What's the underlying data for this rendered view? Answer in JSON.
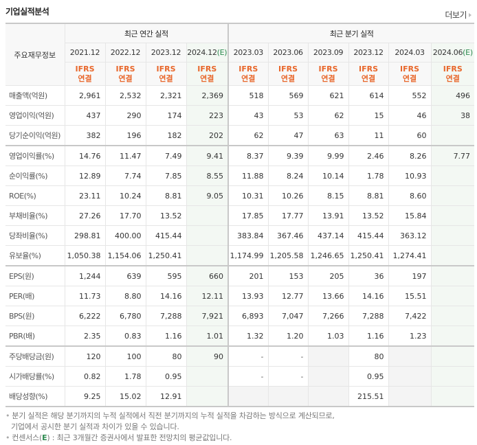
{
  "section": {
    "title": "기업실적분석",
    "more_label": "더보기"
  },
  "table": {
    "label_header": "주요재무정보",
    "group_annual": "최근 연간 실적",
    "group_quarter": "최근 분기 실적",
    "periods": [
      {
        "label": "2021.12",
        "est": ""
      },
      {
        "label": "2022.12",
        "est": ""
      },
      {
        "label": "2023.12",
        "est": ""
      },
      {
        "label": "2024.12",
        "est": "(E)"
      },
      {
        "label": "2023.03",
        "est": ""
      },
      {
        "label": "2023.06",
        "est": ""
      },
      {
        "label": "2023.09",
        "est": ""
      },
      {
        "label": "2023.12",
        "est": ""
      },
      {
        "label": "2024.03",
        "est": ""
      },
      {
        "label": "2024.06",
        "est": "(E)"
      }
    ],
    "ifrs_top": "IFRS",
    "ifrs_bottom": "연결",
    "rows": [
      {
        "label": "매출액(억원)",
        "values": [
          "2,961",
          "2,532",
          "2,321",
          "2,369",
          "518",
          "569",
          "621",
          "614",
          "552",
          "496"
        ]
      },
      {
        "label": "영업이익(억원)",
        "values": [
          "437",
          "290",
          "174",
          "223",
          "43",
          "53",
          "62",
          "15",
          "46",
          "38"
        ]
      },
      {
        "label": "당기순이익(억원)",
        "values": [
          "382",
          "196",
          "182",
          "202",
          "62",
          "47",
          "63",
          "11",
          "60",
          ""
        ]
      },
      {
        "label": "영업이익률(%)",
        "values": [
          "14.76",
          "11.47",
          "7.49",
          "9.41",
          "8.37",
          "9.39",
          "9.99",
          "2.46",
          "8.26",
          "7.77"
        ]
      },
      {
        "label": "순이익률(%)",
        "values": [
          "12.89",
          "7.74",
          "7.85",
          "8.55",
          "11.88",
          "8.24",
          "10.14",
          "1.78",
          "10.93",
          ""
        ]
      },
      {
        "label": "ROE(%)",
        "values": [
          "23.11",
          "10.24",
          "8.81",
          "9.05",
          "10.31",
          "10.26",
          "8.15",
          "8.81",
          "8.60",
          ""
        ]
      },
      {
        "label": "부채비율(%)",
        "values": [
          "27.26",
          "17.70",
          "13.52",
          "",
          "17.85",
          "17.77",
          "13.91",
          "13.52",
          "15.84",
          ""
        ]
      },
      {
        "label": "당좌비율(%)",
        "values": [
          "298.81",
          "400.00",
          "415.44",
          "",
          "383.84",
          "367.46",
          "437.14",
          "415.44",
          "363.12",
          ""
        ]
      },
      {
        "label": "유보율(%)",
        "values": [
          "1,050.38",
          "1,154.06",
          "1,250.41",
          "",
          "1,174.99",
          "1,205.58",
          "1,246.65",
          "1,250.41",
          "1,274.41",
          ""
        ]
      },
      {
        "label": "EPS(원)",
        "values": [
          "1,244",
          "639",
          "595",
          "660",
          "201",
          "153",
          "205",
          "36",
          "197",
          ""
        ]
      },
      {
        "label": "PER(배)",
        "values": [
          "11.73",
          "8.80",
          "14.16",
          "12.11",
          "13.93",
          "12.77",
          "13.66",
          "14.16",
          "15.51",
          ""
        ]
      },
      {
        "label": "BPS(원)",
        "values": [
          "6,222",
          "6,780",
          "7,288",
          "7,921",
          "6,893",
          "7,047",
          "7,266",
          "7,288",
          "7,422",
          ""
        ]
      },
      {
        "label": "PBR(배)",
        "values": [
          "2.35",
          "0.83",
          "1.16",
          "1.01",
          "1.32",
          "1.20",
          "1.03",
          "1.16",
          "1.23",
          ""
        ]
      },
      {
        "label": "주당배당금(원)",
        "values": [
          "120",
          "100",
          "80",
          "90",
          "-",
          "-",
          "",
          "80",
          "",
          ""
        ]
      },
      {
        "label": "시가배당률(%)",
        "values": [
          "0.82",
          "1.78",
          "0.95",
          "",
          "-",
          "-",
          "",
          "0.95",
          "",
          ""
        ]
      },
      {
        "label": "배당성향(%)",
        "values": [
          "9.25",
          "15.02",
          "12.91",
          "",
          "",
          "",
          "",
          "215.51",
          "",
          ""
        ]
      }
    ]
  },
  "notes": {
    "line1": "분기 실적은 해당 분기까지의 누적 실적에서 직전 분기까지의 누적 실적을 차감하는 방식으로 계산되므로,",
    "line2": "기업에서 공시한 분기 실적과 차이가 있을 수 있습니다.",
    "line3_prefix": "컨센서스(",
    "line3_e": "E",
    "line3_suffix": ") : 최근 3개월간 증권사에서 발표한 전망치의 평균값입니다."
  },
  "colors": {
    "ifrs": "#e8662a",
    "estimate": "#2c8a4f",
    "estimate_bg": "#f3f8f3",
    "header_bg": "#f8f8f8"
  }
}
